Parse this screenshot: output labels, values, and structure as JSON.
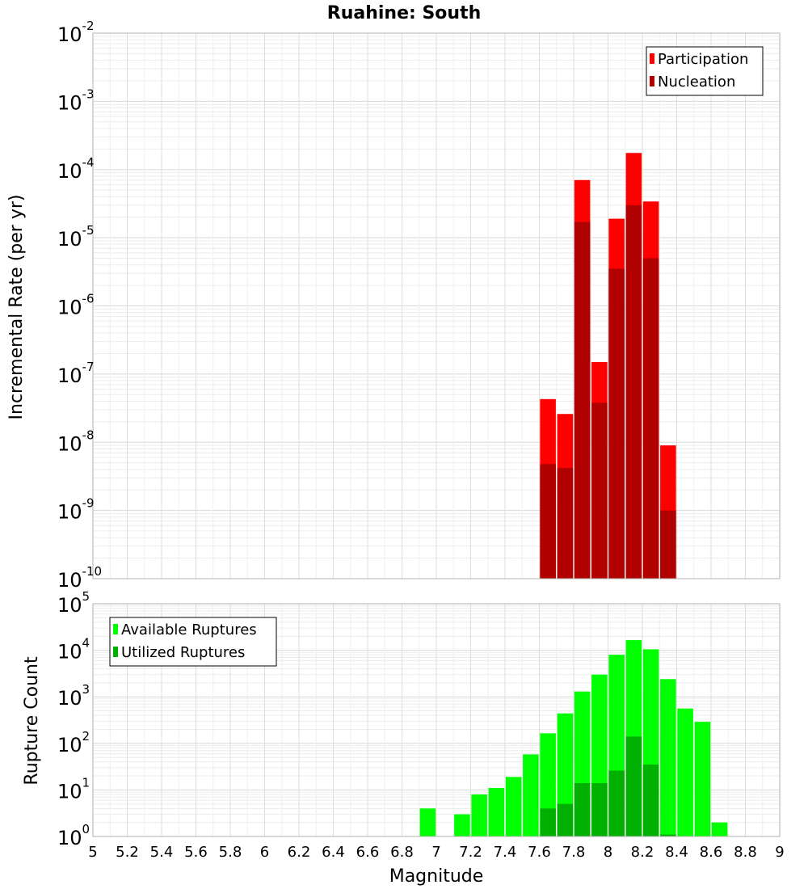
{
  "chart_data": [
    {
      "type": "bar",
      "title": "Ruahine: South",
      "xlabel": "",
      "ylabel": "Incremental Rate (per yr)",
      "y_scale": "log",
      "xlim": [
        5,
        9
      ],
      "ylim": [
        1e-10,
        0.01
      ],
      "y_ticks": [
        {
          "base": "10",
          "exp": "-10"
        },
        {
          "base": "10",
          "exp": "-9"
        },
        {
          "base": "10",
          "exp": "-8"
        },
        {
          "base": "10",
          "exp": "-7"
        },
        {
          "base": "10",
          "exp": "-6"
        },
        {
          "base": "10",
          "exp": "-5"
        },
        {
          "base": "10",
          "exp": "-4"
        },
        {
          "base": "10",
          "exp": "-3"
        },
        {
          "base": "10",
          "exp": "-2"
        }
      ],
      "legend_position": "top-right",
      "grid": true,
      "series": [
        {
          "name": "Participation",
          "color": "#ff0000",
          "x": [
            7.65,
            7.75,
            7.85,
            7.95,
            8.05,
            8.15,
            8.25,
            8.35
          ],
          "values": [
            4.3e-08,
            2.6e-08,
            7e-05,
            1.5e-07,
            1.9e-05,
            0.000175,
            3.4e-05,
            9e-09
          ]
        },
        {
          "name": "Nucleation",
          "color": "#b00000",
          "x": [
            7.65,
            7.75,
            7.85,
            7.95,
            8.05,
            8.15,
            8.25,
            8.35
          ],
          "values": [
            4.8e-09,
            4.2e-09,
            1.7e-05,
            3.8e-08,
            3.5e-06,
            3e-05,
            5e-06,
            1e-09
          ]
        }
      ]
    },
    {
      "type": "bar",
      "title": "",
      "xlabel": "Magnitude",
      "ylabel": "Rupture Count",
      "y_scale": "log",
      "xlim": [
        5,
        9
      ],
      "ylim": [
        1,
        100000
      ],
      "x_tick_labels": [
        "5",
        "5.2",
        "5.4",
        "5.6",
        "5.8",
        "6",
        "6.2",
        "6.4",
        "6.6",
        "6.8",
        "7",
        "7.2",
        "7.4",
        "7.6",
        "7.8",
        "8",
        "8.2",
        "8.4",
        "8.6",
        "8.8",
        "9"
      ],
      "y_ticks": [
        {
          "base": "10",
          "exp": "0"
        },
        {
          "base": "10",
          "exp": "1"
        },
        {
          "base": "10",
          "exp": "2"
        },
        {
          "base": "10",
          "exp": "3"
        },
        {
          "base": "10",
          "exp": "4"
        },
        {
          "base": "10",
          "exp": "5"
        }
      ],
      "legend_position": "top-left",
      "grid": true,
      "series": [
        {
          "name": "Available Ruptures",
          "color": "#00ff00",
          "x": [
            6.95,
            7.15,
            7.25,
            7.35,
            7.45,
            7.55,
            7.65,
            7.75,
            7.85,
            7.95,
            8.05,
            8.15,
            8.25,
            8.35,
            8.45,
            8.55,
            8.65
          ],
          "values": [
            4,
            3,
            8,
            11,
            19,
            58,
            165,
            440,
            1300,
            3000,
            8000,
            16500,
            10500,
            2400,
            560,
            290,
            2
          ]
        },
        {
          "name": "Utilized Ruptures",
          "color": "#00b000",
          "x": [
            7.65,
            7.75,
            7.85,
            7.95,
            8.05,
            8.15,
            8.25,
            8.35
          ],
          "values": [
            4,
            5,
            14,
            14,
            26,
            140,
            35,
            1.1
          ]
        }
      ]
    }
  ]
}
